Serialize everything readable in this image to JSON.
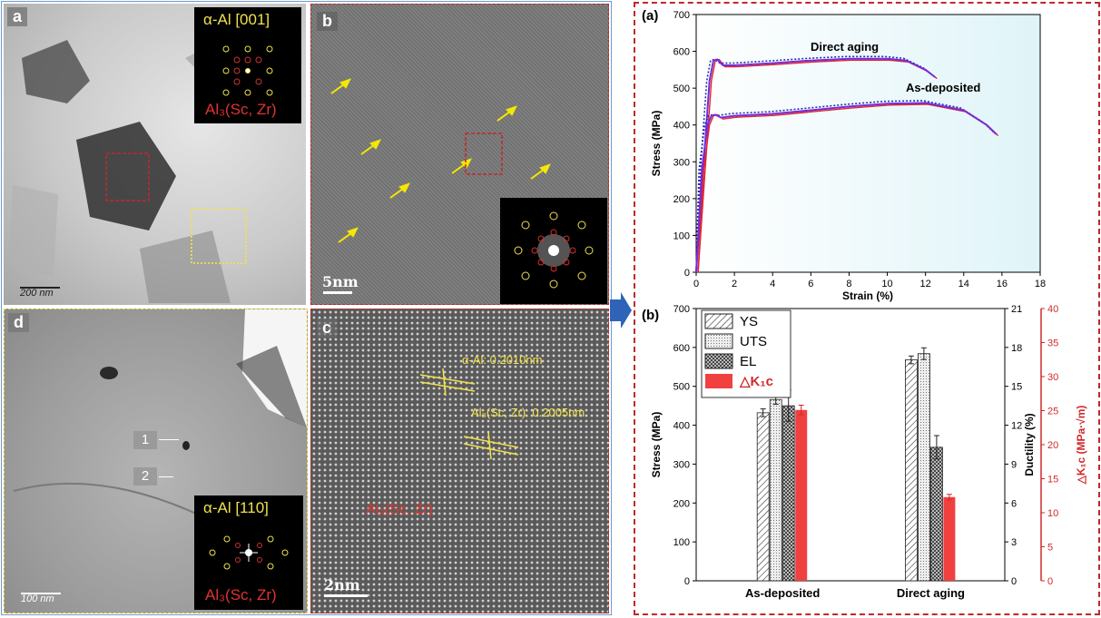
{
  "panel_a": {
    "label": "a",
    "inset_title": "α-Al [001]",
    "inset_caption": "Al₃(Sc, Zr)",
    "scale": "200 nm"
  },
  "panel_b": {
    "label": "b",
    "scale": "5nm"
  },
  "panel_c": {
    "label": "c",
    "scale": "2nm",
    "annot_1": "α-Al:  0.2010nm",
    "annot_2": "Al₃(Sc, Zr): 0.2005nm",
    "annot_3": "Al₃(Sc, Zr)"
  },
  "panel_d": {
    "label": "d",
    "marker_1": "1",
    "marker_2": "2",
    "inset_title": "α-Al [110]",
    "inset_caption": "Al₃(Sc, Zr)",
    "scale": "100 nm"
  },
  "colors": {
    "red_dashed": "#c0282d",
    "yellow_dotted": "#f1e24a",
    "blue_arrow": "#2f63b8",
    "purple_curve": "#7a2bd6",
    "red_curve": "#e2262a",
    "blue_dotted": "#1f2fb0",
    "kic_bar": "#f04040"
  },
  "chart_a": {
    "label": "(a)",
    "xlabel": "Strain (%)",
    "ylabel": "Stress (MPa)",
    "xticks": [
      "0",
      "2",
      "4",
      "6",
      "8",
      "10",
      "12",
      "14",
      "16",
      "18"
    ],
    "yticks": [
      "0",
      "100",
      "200",
      "300",
      "400",
      "500",
      "600",
      "700"
    ],
    "annot_top": "Direct aging",
    "annot_bottom": "As-deposited"
  },
  "chart_b": {
    "label": "(b)",
    "ylabel_left": "Stress (MPa)",
    "ylabel_mid": "Ductility (%)",
    "ylabel_right": "△K₁c (MPa·√m)",
    "yticks_left": [
      "0",
      "100",
      "200",
      "300",
      "400",
      "500",
      "600",
      "700"
    ],
    "yticks_mid": [
      "0",
      "3",
      "6",
      "9",
      "12",
      "15",
      "18",
      "21"
    ],
    "yticks_right": [
      "0",
      "5",
      "10",
      "15",
      "20",
      "25",
      "30",
      "35",
      "40"
    ],
    "legend": [
      "YS",
      "UTS",
      "EL",
      "△K₁c"
    ]
  },
  "chart_data": [
    {
      "type": "line",
      "title": "",
      "xlabel": "Strain (%)",
      "ylabel": "Stress (MPa)",
      "xlim": [
        0,
        18
      ],
      "ylim": [
        0,
        700
      ],
      "series": [
        {
          "name": "Direct aging",
          "x": [
            0,
            0.4,
            0.7,
            0.9,
            1.1,
            1.4,
            2,
            4,
            6,
            8,
            10,
            11,
            12,
            12.5
          ],
          "y": [
            0,
            300,
            520,
            575,
            578,
            562,
            562,
            568,
            575,
            580,
            580,
            575,
            550,
            530
          ]
        },
        {
          "name": "As-deposited",
          "x": [
            0,
            0.3,
            0.6,
            0.8,
            1.0,
            1.3,
            2,
            4,
            6,
            8,
            10,
            12,
            14,
            15.2,
            15.7
          ],
          "y": [
            0,
            280,
            400,
            425,
            428,
            420,
            425,
            430,
            440,
            450,
            458,
            460,
            440,
            400,
            375
          ]
        }
      ]
    },
    {
      "type": "bar",
      "title": "",
      "categories": [
        "As-deposited",
        "Direct aging"
      ],
      "series": [
        {
          "name": "YS",
          "values": [
            432,
            568
          ],
          "errors": [
            10,
            10
          ],
          "axis": "Stress (MPa)"
        },
        {
          "name": "UTS",
          "values": [
            466,
            584
          ],
          "errors": [
            12,
            15
          ],
          "axis": "Stress (MPa)"
        },
        {
          "name": "EL",
          "values": [
            13.5,
            10.3
          ],
          "errors": [
            1.2,
            0.9
          ],
          "axis": "Ductility (%)"
        },
        {
          "name": "△K₁c",
          "values": [
            25.1,
            12.3
          ],
          "errors": [
            0.7,
            0.4
          ],
          "axis": "△K₁c (MPa·√m)"
        }
      ],
      "ylim_left": [
        0,
        700
      ],
      "ylim_mid": [
        0,
        21
      ],
      "ylim_right": [
        0,
        40
      ]
    }
  ]
}
